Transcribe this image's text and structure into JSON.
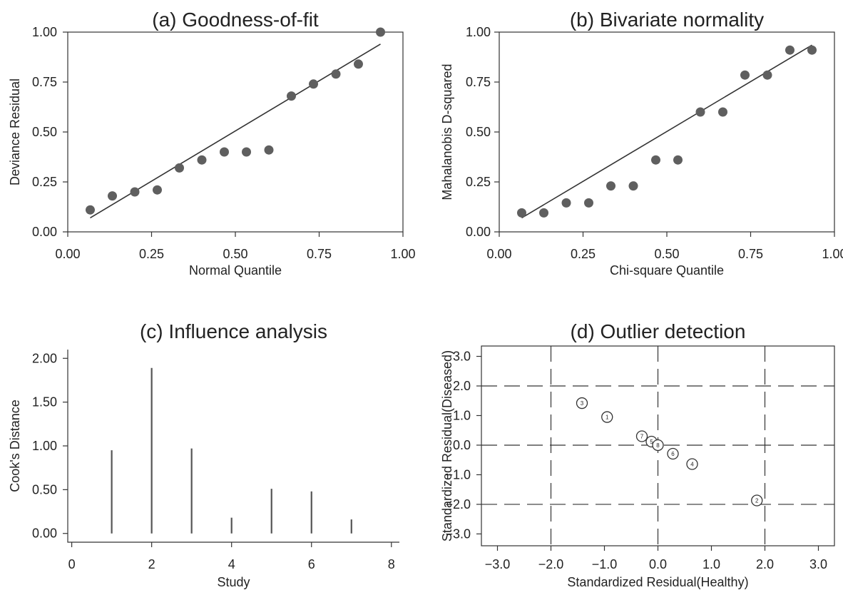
{
  "chart_data": [
    {
      "id": "a",
      "type": "scatter",
      "title": "(a) Goodness-of-fit",
      "xlabel": "Normal Quantile",
      "ylabel": "Deviance Residual",
      "xlim": [
        0,
        1
      ],
      "ylim": [
        0,
        1
      ],
      "xticks": [
        "0.00",
        "0.25",
        "0.50",
        "0.75",
        "1.00"
      ],
      "yticks": [
        "0.00",
        "0.25",
        "0.50",
        "0.75",
        "1.00"
      ],
      "points": [
        [
          0.067,
          0.11
        ],
        [
          0.133,
          0.18
        ],
        [
          0.2,
          0.2
        ],
        [
          0.267,
          0.21
        ],
        [
          0.333,
          0.32
        ],
        [
          0.4,
          0.36
        ],
        [
          0.467,
          0.4
        ],
        [
          0.533,
          0.4
        ],
        [
          0.6,
          0.41
        ],
        [
          0.667,
          0.68
        ],
        [
          0.733,
          0.74
        ],
        [
          0.8,
          0.79
        ],
        [
          0.867,
          0.84
        ],
        [
          0.933,
          1.0
        ]
      ],
      "fit_line": [
        [
          0.067,
          0.07
        ],
        [
          0.933,
          0.94
        ]
      ]
    },
    {
      "id": "b",
      "type": "scatter",
      "title": "(b) Bivariate normality",
      "xlabel": "Chi-square   Quantile",
      "ylabel": "Mahalanobis D-squared",
      "xlim": [
        0,
        1
      ],
      "ylim": [
        0,
        1
      ],
      "xticks": [
        "0.00",
        "0.25",
        "0.50",
        "0.75",
        "1.00"
      ],
      "yticks": [
        "0.00",
        "0.25",
        "0.50",
        "0.75",
        "1.00"
      ],
      "points": [
        [
          0.067,
          0.095
        ],
        [
          0.133,
          0.095
        ],
        [
          0.2,
          0.145
        ],
        [
          0.267,
          0.145
        ],
        [
          0.333,
          0.23
        ],
        [
          0.4,
          0.23
        ],
        [
          0.467,
          0.36
        ],
        [
          0.533,
          0.36
        ],
        [
          0.6,
          0.6
        ],
        [
          0.667,
          0.6
        ],
        [
          0.733,
          0.785
        ],
        [
          0.8,
          0.785
        ],
        [
          0.867,
          0.91
        ],
        [
          0.933,
          0.91
        ]
      ],
      "fit_line": [
        [
          0.067,
          0.07
        ],
        [
          0.933,
          0.935
        ]
      ]
    },
    {
      "id": "c",
      "type": "bar",
      "title": "(c) Influence analysis",
      "xlabel": "Study",
      "ylabel": "Cook's Distance",
      "xlim": [
        -0.1,
        8.2
      ],
      "ylim": [
        -0.1,
        2.1
      ],
      "xticks": [
        "0",
        "2",
        "4",
        "6",
        "8"
      ],
      "yticks": [
        "0.00",
        "0.50",
        "1.00",
        "1.50",
        "2.00"
      ],
      "categories": [
        1,
        2,
        3,
        4,
        5,
        6,
        7
      ],
      "values": [
        0.95,
        1.89,
        0.97,
        0.18,
        0.51,
        0.48,
        0.16
      ]
    },
    {
      "id": "d",
      "type": "scatter",
      "title": "(d) Outlier detection",
      "xlabel": "Standardized Residual(Healthy)",
      "ylabel": "Standardized Residual(Diseased)",
      "xlim": [
        -3.3,
        3.3
      ],
      "ylim": [
        -3.4,
        3.35
      ],
      "xticks": [
        "−3.0",
        "−2.0",
        "−1.0",
        "0.0",
        "1.0",
        "2.0",
        "3.0"
      ],
      "yticks": [
        "−3.0",
        "−2.0",
        "−1.0",
        "0.0",
        "1.0",
        "2.0",
        "3.0"
      ],
      "ref_lines_x": [
        -2,
        0,
        2
      ],
      "ref_lines_y": [
        -2,
        0,
        2
      ],
      "points": [
        {
          "label": "3",
          "x": -1.42,
          "y": 1.42
        },
        {
          "label": "1",
          "x": -0.95,
          "y": 0.95
        },
        {
          "label": "7",
          "x": -0.3,
          "y": 0.3
        },
        {
          "label": "5",
          "x": -0.12,
          "y": 0.12
        },
        {
          "label": "8",
          "x": 0.0,
          "y": 0.0
        },
        {
          "label": "6",
          "x": 0.28,
          "y": -0.29
        },
        {
          "label": "4",
          "x": 0.64,
          "y": -0.64
        },
        {
          "label": "2",
          "x": 1.85,
          "y": -1.87
        }
      ]
    }
  ]
}
